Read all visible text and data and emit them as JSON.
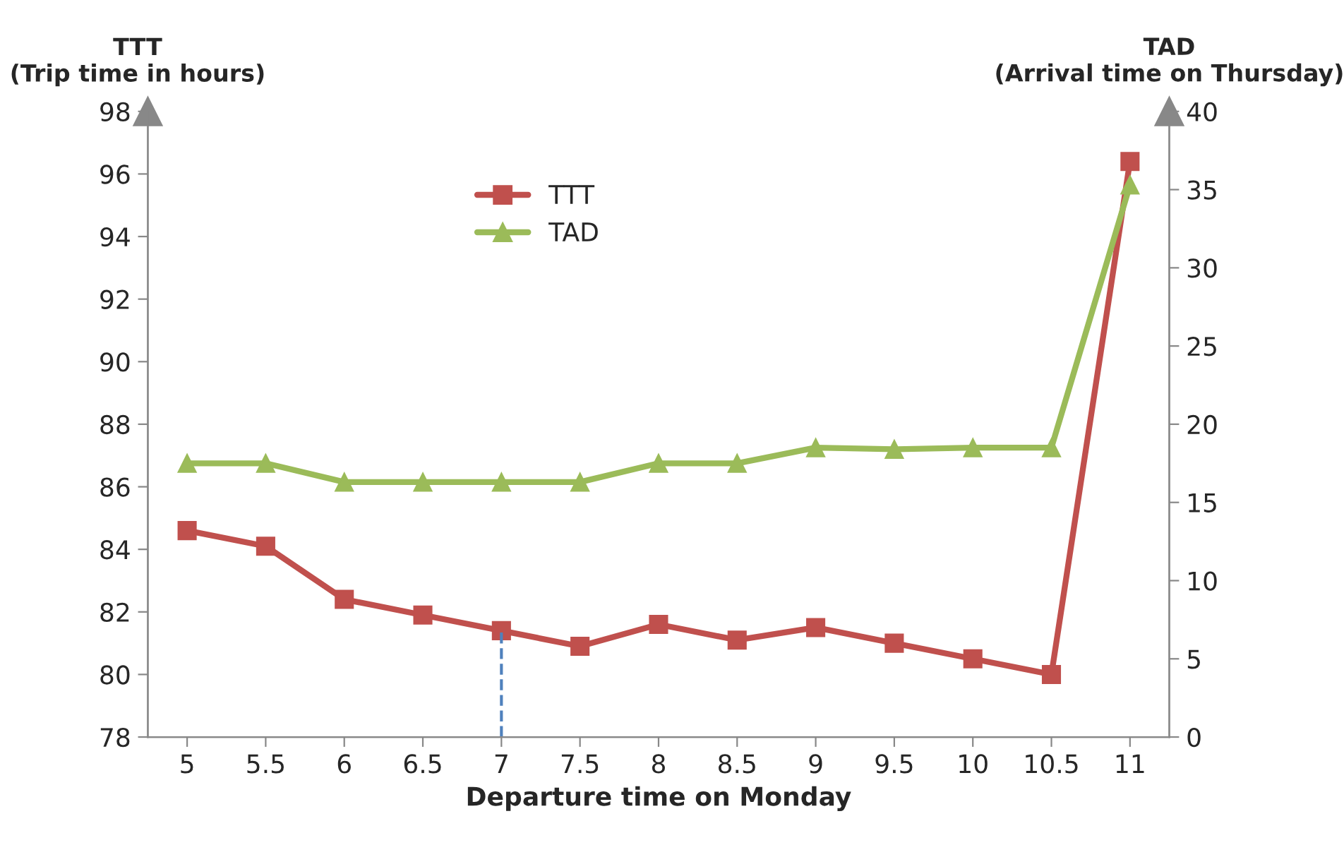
{
  "chart_data": {
    "type": "line",
    "xlabel": "Departure time on Monday",
    "ylabel": "TTT\n(Trip time in hours)",
    "y2label": "TAD\n(Arrival time on Thursday)",
    "x": [
      5,
      5.5,
      6,
      6.5,
      7,
      7.5,
      8,
      8.5,
      9,
      9.5,
      10,
      10.5,
      11
    ],
    "xlim": [
      4.75,
      11.25
    ],
    "xticks": [
      5,
      5.5,
      6,
      6.5,
      7,
      7.5,
      8,
      8.5,
      9,
      9.5,
      10,
      10.5,
      11
    ],
    "ylim": [
      78,
      98
    ],
    "yticks": [
      78,
      80,
      82,
      84,
      86,
      88,
      90,
      92,
      94,
      96,
      98
    ],
    "y2lim": [
      0,
      40
    ],
    "y2ticks": [
      0,
      5,
      10,
      15,
      20,
      25,
      30,
      35,
      40
    ],
    "series": [
      {
        "name": "TTT",
        "color": "#c0504d",
        "marker": "square",
        "values": [
          84.6,
          84.1,
          82.4,
          81.9,
          81.4,
          80.9,
          81.6,
          81.1,
          81.5,
          81.0,
          80.5,
          80.0,
          96.4
        ]
      },
      {
        "name": "TAD",
        "color": "#9bbb59",
        "marker": "triangle",
        "axis": "y2",
        "values": [
          17.5,
          17.5,
          16.3,
          16.3,
          16.3,
          16.3,
          17.5,
          17.5,
          18.5,
          18.4,
          18.5,
          18.5,
          35.3
        ]
      }
    ],
    "ref_lines": [
      {
        "axis": "x",
        "value": 7,
        "color": "#4f81bd",
        "line_style": "dashed"
      }
    ],
    "legend": "top left",
    "grid": false
  }
}
